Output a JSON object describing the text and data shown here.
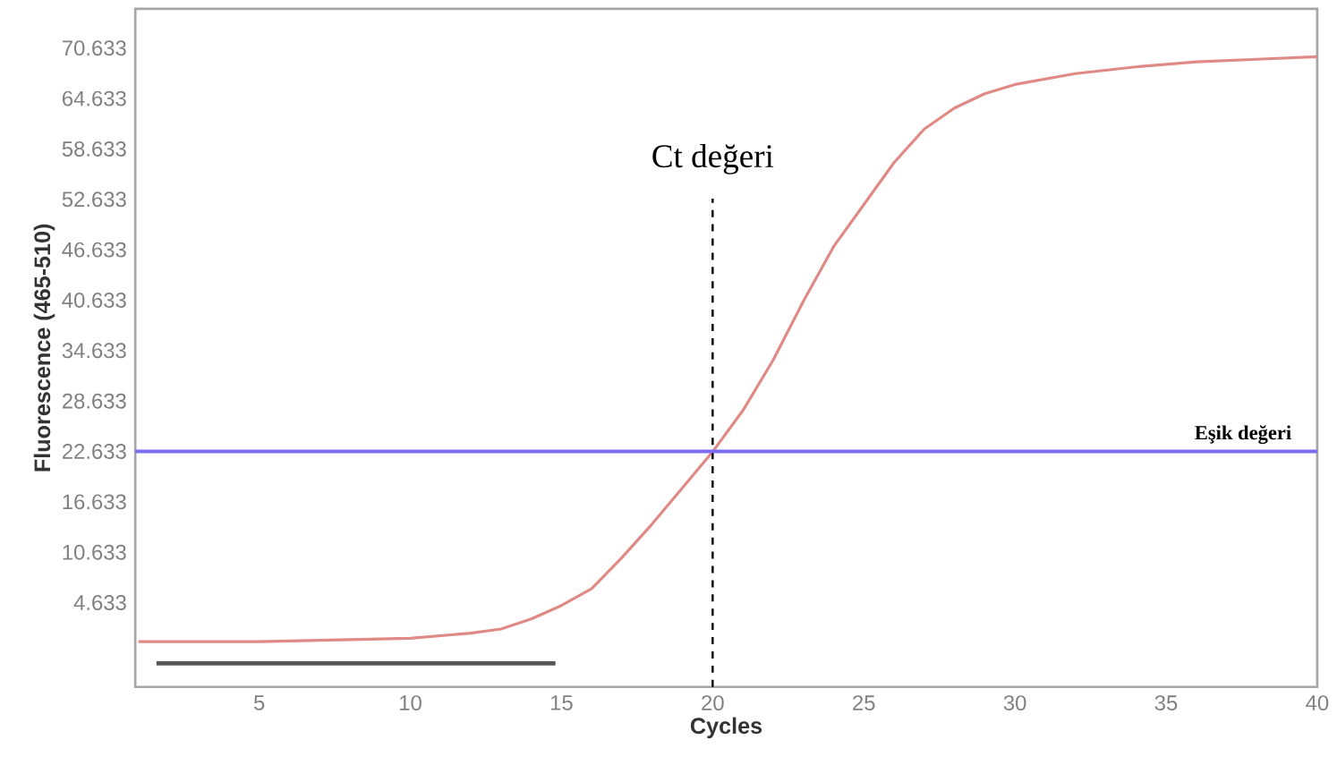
{
  "chart_data": {
    "type": "line",
    "xlabel": "Cycles",
    "ylabel": "Fluorescence (465-510)",
    "xlim": [
      0.9,
      40
    ],
    "ylim": [
      -5.4,
      75.3
    ],
    "xticks": [
      5,
      10,
      15,
      20,
      25,
      30,
      35,
      40
    ],
    "yticks": [
      4.633,
      10.633,
      16.633,
      22.633,
      28.633,
      34.633,
      40.633,
      46.633,
      52.633,
      58.633,
      64.633,
      70.633
    ],
    "series": [
      {
        "color": "#e08a86",
        "x": [
          1,
          5,
          10,
          12,
          13,
          14,
          15,
          16,
          17,
          18,
          19,
          20,
          21,
          22,
          23,
          24,
          25,
          26,
          27,
          28,
          29,
          30,
          32,
          34,
          36,
          38,
          40
        ],
        "values": [
          0.0,
          0.0,
          0.4,
          1.0,
          1.5,
          2.7,
          4.3,
          6.3,
          10.0,
          14.0,
          18.3,
          22.6,
          27.5,
          33.5,
          40.5,
          47,
          52,
          57,
          61,
          63.5,
          65.2,
          66.3,
          67.6,
          68.4,
          69.0,
          69.3,
          69.6
        ]
      },
      {
        "color": "#555555",
        "x": [
          1.6,
          14.8
        ],
        "values": [
          -2.6,
          -2.6
        ]
      }
    ],
    "ref_lines": [
      {
        "axis": "x",
        "value": 20,
        "label": "Ct değeri",
        "color": "#000000",
        "line_style": "dashed"
      },
      {
        "axis": "y",
        "value": 22.633,
        "label": "Eşik değeri",
        "color": "#7b6cf0",
        "line_style": "solid"
      }
    ]
  }
}
